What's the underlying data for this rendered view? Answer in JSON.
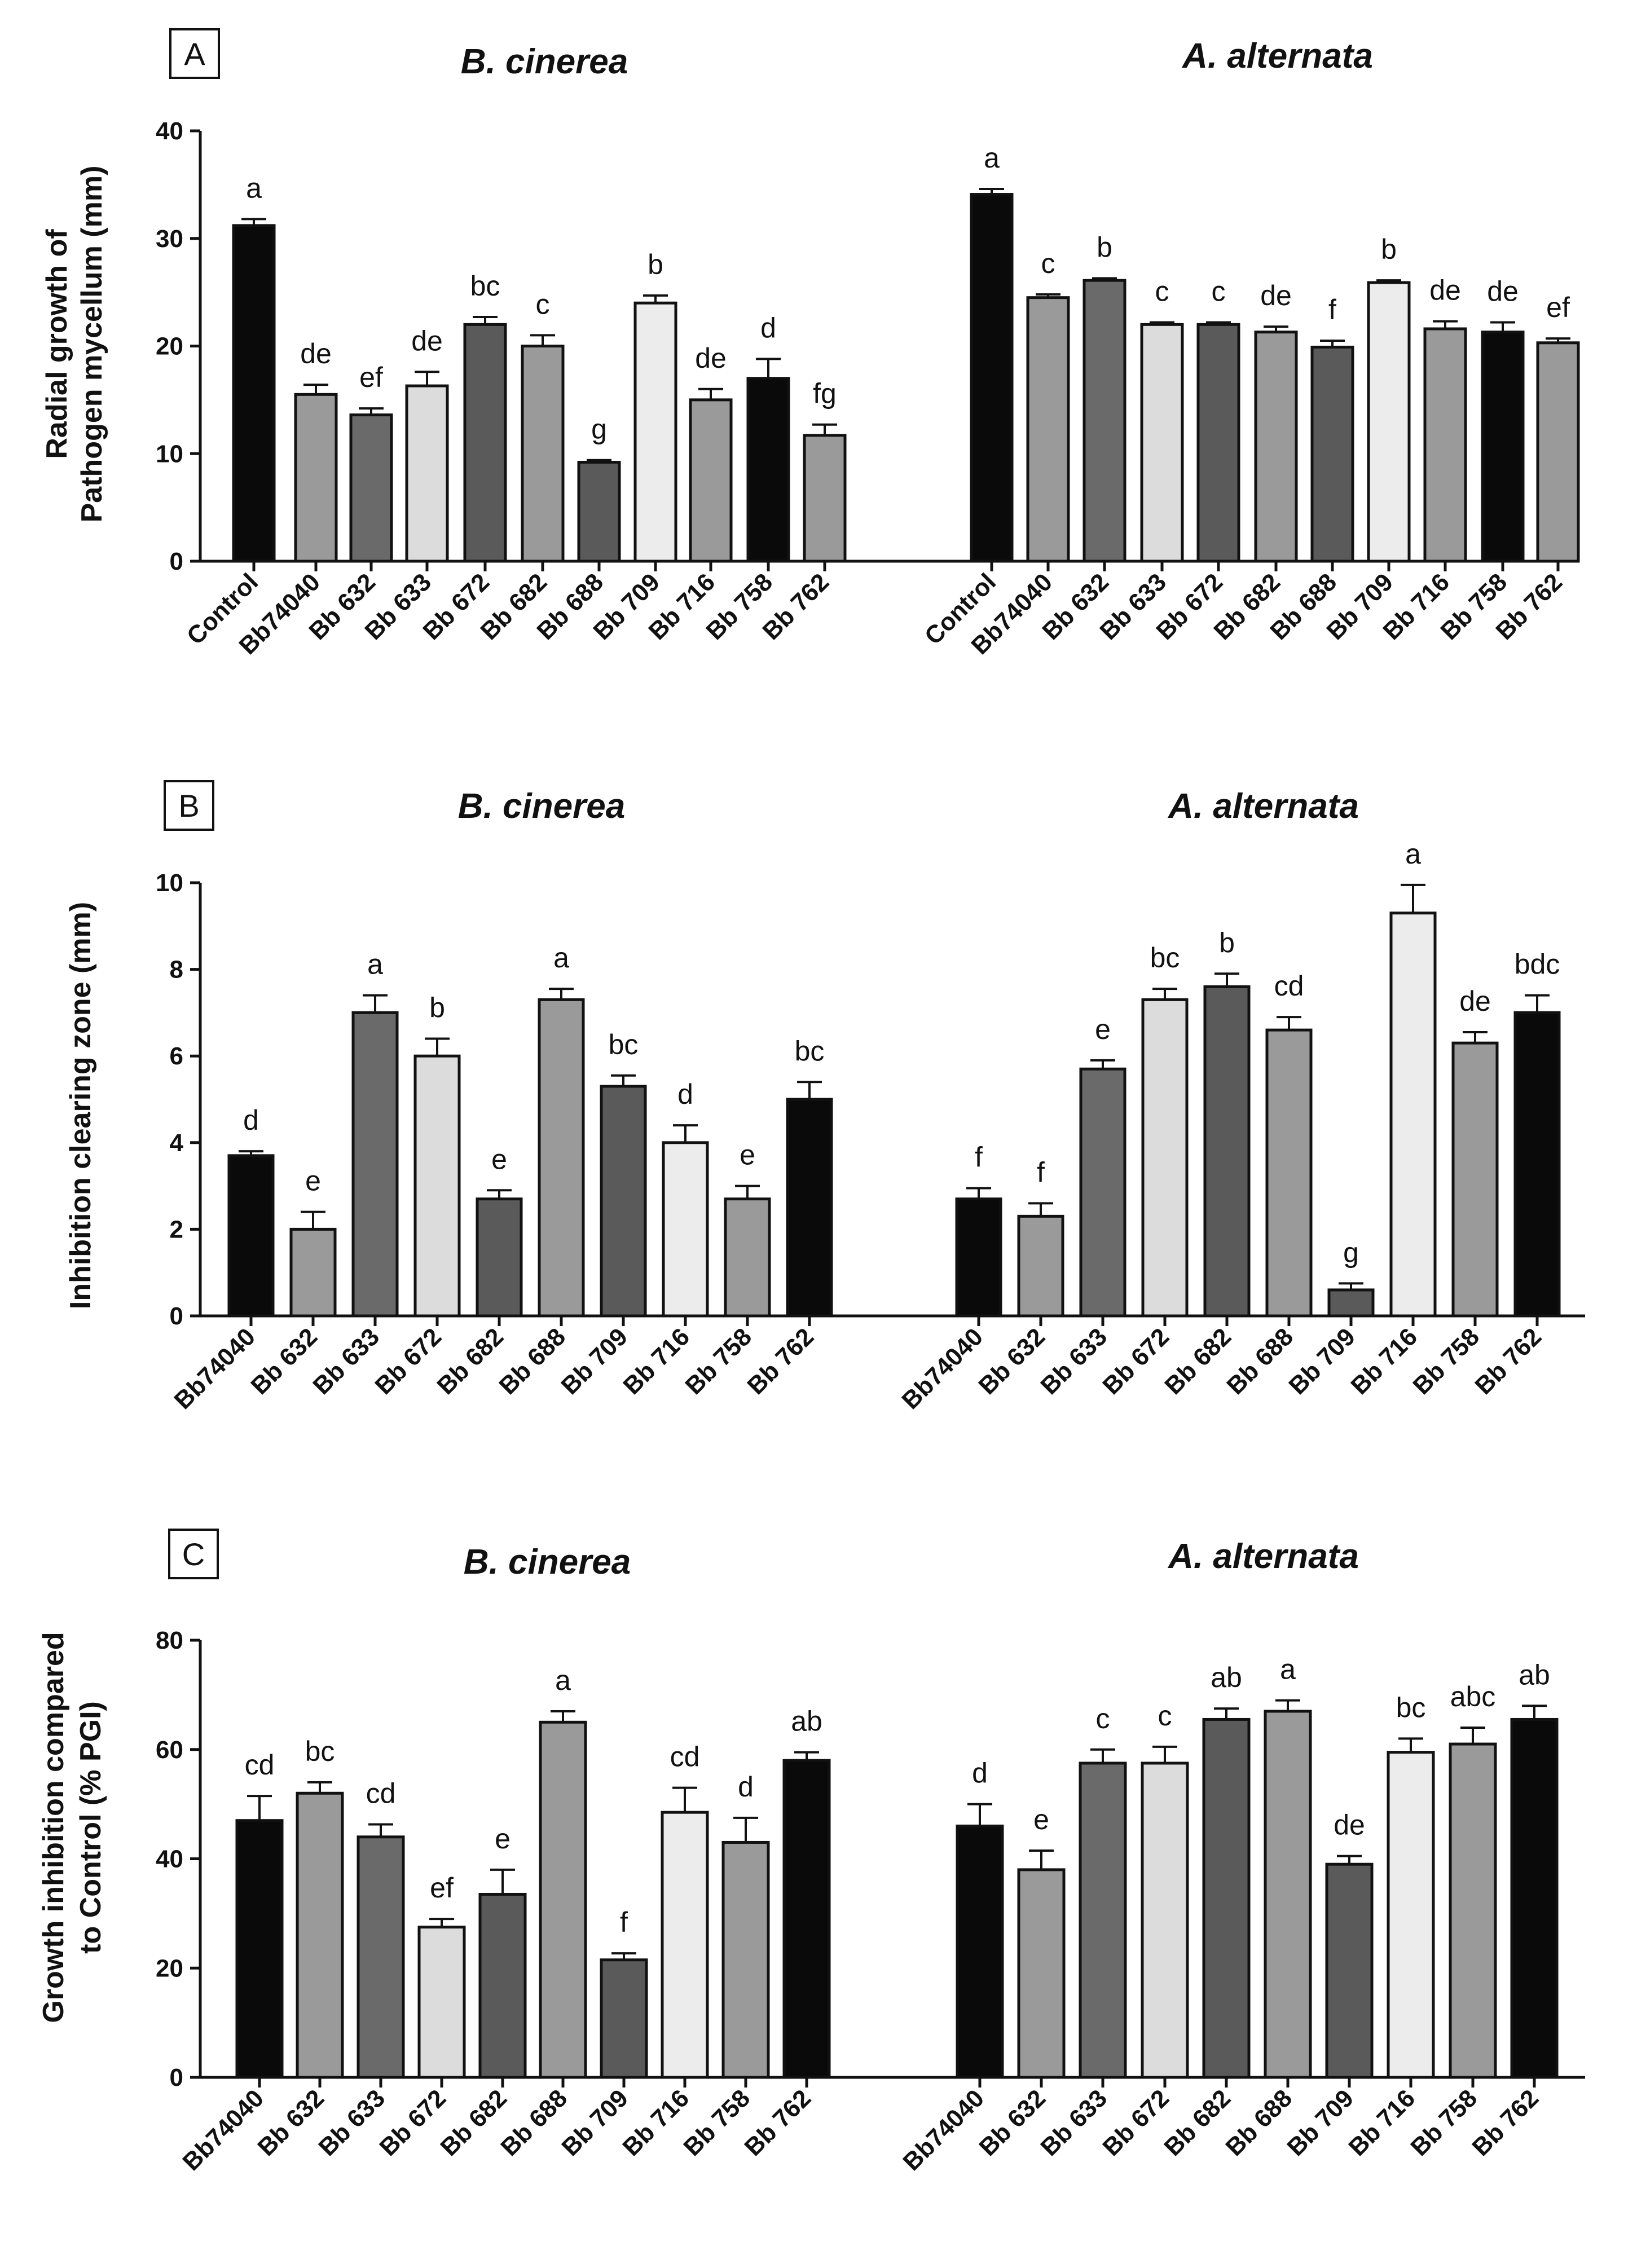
{
  "figure": {
    "panels": [
      {
        "letter": "A",
        "ylabel_line1": "Radial growth of",
        "ylabel_line2": "Pathogen mycellum (mm)",
        "ylim": [
          0,
          40
        ],
        "yticks": [
          0,
          10,
          20,
          30,
          40
        ],
        "titles": [
          "B. cinerea",
          "A. alternata"
        ]
      },
      {
        "letter": "B",
        "ylabel_line1": "Inhibition clearing zone (mm)",
        "ylabel_line2": "",
        "ylim": [
          0,
          10
        ],
        "yticks": [
          0,
          2,
          4,
          6,
          8,
          10
        ],
        "titles": [
          "B. cinerea",
          "A. alternata"
        ]
      },
      {
        "letter": "C",
        "ylabel_line1": "Growth inhibition compared",
        "ylabel_line2": "to Control (% PGI)",
        "ylim": [
          0,
          80
        ],
        "yticks": [
          0,
          20,
          40,
          60,
          80
        ],
        "titles": [
          "B. cinerea",
          "A. alternata"
        ]
      }
    ]
  },
  "chart_data": [
    {
      "type": "bar",
      "panel": "A",
      "title": "B. cinerea",
      "ylabel": "Radial growth of Pathogen mycellum (mm)",
      "ylim": [
        0,
        40
      ],
      "categories": [
        "Control",
        "Bb74040",
        "Bb 632",
        "Bb 633",
        "Bb 672",
        "Bb 682",
        "Bb 688",
        "Bb 709",
        "Bb 716",
        "Bb 758",
        "Bb 762"
      ],
      "values": [
        31.2,
        15.5,
        13.6,
        16.3,
        22.0,
        20.0,
        9.2,
        24.0,
        15.0,
        17.0,
        11.7
      ],
      "errors": [
        0.6,
        0.9,
        0.6,
        1.3,
        0.7,
        1.0,
        0.2,
        0.7,
        1.0,
        1.8,
        1.0
      ],
      "labels": [
        "a",
        "de",
        "ef",
        "de",
        "bc",
        "c",
        "g",
        "b",
        "de",
        "d",
        "fg"
      ],
      "colors": [
        "#0a0a0a",
        "#9a9a9a",
        "#6a6a6a",
        "#dcdcdc",
        "#5a5a5a",
        "#9a9a9a",
        "#5a5a5a",
        "#ececec",
        "#9a9a9a",
        "#0a0a0a",
        "#9a9a9a"
      ]
    },
    {
      "type": "bar",
      "panel": "A",
      "title": "A. alternata",
      "ylabel": "Radial growth of Pathogen mycellum (mm)",
      "ylim": [
        0,
        40
      ],
      "categories": [
        "Control",
        "Bb74040",
        "Bb 632",
        "Bb 633",
        "Bb 672",
        "Bb 682",
        "Bb 688",
        "Bb 709",
        "Bb 716",
        "Bb 758",
        "Bb 762"
      ],
      "values": [
        34.1,
        24.5,
        26.1,
        22.0,
        22.0,
        21.3,
        19.9,
        25.9,
        21.6,
        21.3,
        20.3
      ],
      "errors": [
        0.5,
        0.3,
        0.2,
        0.2,
        0.2,
        0.5,
        0.6,
        0.2,
        0.7,
        0.9,
        0.4
      ],
      "labels": [
        "a",
        "c",
        "b",
        "c",
        "c",
        "de",
        "f",
        "b",
        "de",
        "de",
        "ef"
      ],
      "colors": [
        "#0a0a0a",
        "#9a9a9a",
        "#6a6a6a",
        "#dcdcdc",
        "#5a5a5a",
        "#9a9a9a",
        "#5a5a5a",
        "#ececec",
        "#9a9a9a",
        "#0a0a0a",
        "#9a9a9a"
      ]
    },
    {
      "type": "bar",
      "panel": "B",
      "title": "B. cinerea",
      "ylabel": "Inhibition clearing zone (mm)",
      "ylim": [
        0,
        10
      ],
      "categories": [
        "Bb74040",
        "Bb 632",
        "Bb 633",
        "Bb 672",
        "Bb 682",
        "Bb 688",
        "Bb 709",
        "Bb 716",
        "Bb 758",
        "Bb 762"
      ],
      "values": [
        3.7,
        2.0,
        7.0,
        6.0,
        2.7,
        7.3,
        5.3,
        4.0,
        2.7,
        5.0
      ],
      "errors": [
        0.1,
        0.4,
        0.4,
        0.4,
        0.2,
        0.25,
        0.25,
        0.4,
        0.3,
        0.4
      ],
      "labels": [
        "d",
        "e",
        "a",
        "b",
        "e",
        "a",
        "bc",
        "d",
        "e",
        "bc"
      ],
      "colors": [
        "#0a0a0a",
        "#9a9a9a",
        "#6a6a6a",
        "#dcdcdc",
        "#5a5a5a",
        "#9a9a9a",
        "#5a5a5a",
        "#ececec",
        "#9a9a9a",
        "#0a0a0a"
      ]
    },
    {
      "type": "bar",
      "panel": "B",
      "title": "A. alternata",
      "ylabel": "Inhibition clearing zone (mm)",
      "ylim": [
        0,
        10
      ],
      "categories": [
        "Bb74040",
        "Bb 632",
        "Bb 633",
        "Bb 672",
        "Bb 682",
        "Bb 688",
        "Bb 709",
        "Bb 716",
        "Bb 758",
        "Bb 762"
      ],
      "values": [
        2.7,
        2.3,
        5.7,
        7.3,
        7.6,
        6.6,
        0.6,
        9.3,
        6.3,
        7.0
      ],
      "errors": [
        0.25,
        0.3,
        0.2,
        0.25,
        0.3,
        0.3,
        0.15,
        0.65,
        0.25,
        0.4
      ],
      "labels": [
        "f",
        "f",
        "e",
        "bc",
        "b",
        "cd",
        "g",
        "a",
        "de",
        "bdc"
      ],
      "colors": [
        "#0a0a0a",
        "#9a9a9a",
        "#6a6a6a",
        "#dcdcdc",
        "#5a5a5a",
        "#9a9a9a",
        "#5a5a5a",
        "#ececec",
        "#9a9a9a",
        "#0a0a0a"
      ]
    },
    {
      "type": "bar",
      "panel": "C",
      "title": "B. cinerea",
      "ylabel": "Growth inhibition compared to Control (% PGI)",
      "ylim": [
        0,
        80
      ],
      "categories": [
        "Bb74040",
        "Bb 632",
        "Bb 633",
        "Bb 672",
        "Bb 682",
        "Bb 688",
        "Bb 709",
        "Bb 716",
        "Bb 758",
        "Bb 762"
      ],
      "values": [
        47,
        52,
        44,
        27.5,
        33.5,
        65,
        21.5,
        48.5,
        43,
        58
      ],
      "errors": [
        4.5,
        2,
        2.3,
        1.5,
        4.5,
        2,
        1.2,
        4.5,
        4.5,
        1.5
      ],
      "labels": [
        "cd",
        "bc",
        "cd",
        "ef",
        "e",
        "a",
        "f",
        "cd",
        "d",
        "ab"
      ],
      "colors": [
        "#0a0a0a",
        "#9a9a9a",
        "#6a6a6a",
        "#dcdcdc",
        "#5a5a5a",
        "#9a9a9a",
        "#5a5a5a",
        "#ececec",
        "#9a9a9a",
        "#0a0a0a"
      ]
    },
    {
      "type": "bar",
      "panel": "C",
      "title": "A. alternata",
      "ylabel": "Growth inhibition compared to Control (% PGI)",
      "ylim": [
        0,
        80
      ],
      "categories": [
        "Bb74040",
        "Bb 632",
        "Bb 633",
        "Bb 672",
        "Bb 682",
        "Bb 688",
        "Bb 709",
        "Bb 716",
        "Bb 758",
        "Bb 762"
      ],
      "values": [
        46,
        38,
        57.5,
        57.5,
        65.5,
        67,
        39,
        59.5,
        61,
        65.5
      ],
      "errors": [
        4,
        3.5,
        2.5,
        3,
        2,
        2,
        1.5,
        2.5,
        3,
        2.5
      ],
      "labels": [
        "d",
        "e",
        "c",
        "c",
        "ab",
        "a",
        "de",
        "bc",
        "abc",
        "ab"
      ],
      "colors": [
        "#0a0a0a",
        "#9a9a9a",
        "#6a6a6a",
        "#dcdcdc",
        "#5a5a5a",
        "#9a9a9a",
        "#5a5a5a",
        "#ececec",
        "#9a9a9a",
        "#0a0a0a"
      ]
    }
  ]
}
